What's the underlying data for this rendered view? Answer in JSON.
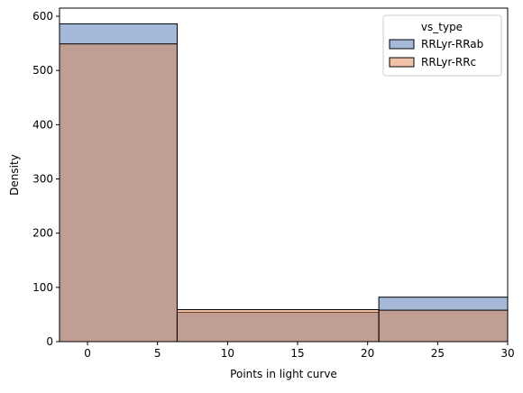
{
  "chart_data": {
    "type": "bar",
    "xlabel": "Points in light curve",
    "ylabel": "Density",
    "xlim": [
      -2,
      30
    ],
    "ylim": [
      0,
      615
    ],
    "x_ticks": [
      0,
      5,
      10,
      15,
      20,
      25,
      30
    ],
    "y_ticks": [
      0,
      100,
      200,
      300,
      400,
      500,
      600
    ],
    "grid": false,
    "legend": {
      "title": "vs_type",
      "placement": "top-right"
    },
    "bins": [
      {
        "x0": -2,
        "x1": 6.4
      },
      {
        "x0": 6.4,
        "x1": 20.8
      },
      {
        "x0": 20.8,
        "x1": 30
      }
    ],
    "series": [
      {
        "name": "RRLyr-RRab",
        "color": "#4c72b0",
        "values": [
          586,
          54,
          82
        ]
      },
      {
        "name": "RRLyr-RRc",
        "color": "#dd8452",
        "values": [
          549,
          59,
          58
        ]
      }
    ]
  }
}
